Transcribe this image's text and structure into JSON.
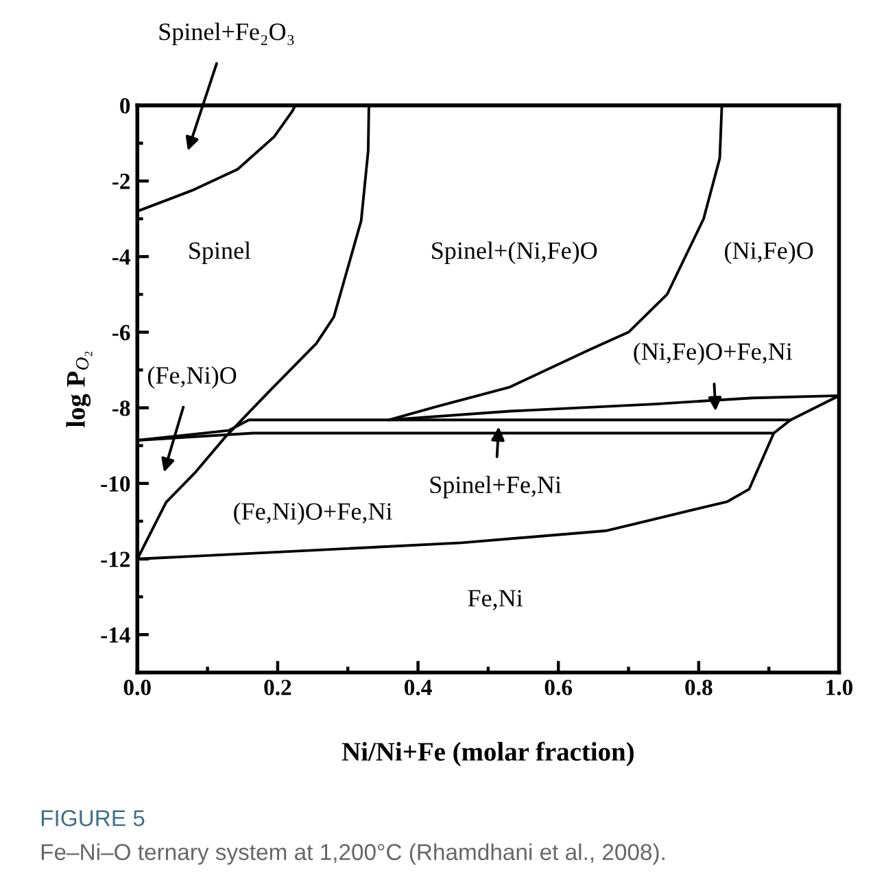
{
  "chart_data": {
    "type": "line",
    "title": "FIGURE 5",
    "xlabel": "Ni/Ni+Fe (molar fraction)",
    "ylabel": "log P$_{O₂}$",
    "xlim": [
      0,
      1
    ],
    "ylim": [
      -15,
      0
    ],
    "xticks": [
      {
        "value": 0,
        "label": "0.0"
      },
      {
        "value": 0.2,
        "label": "0.2"
      },
      {
        "value": 0.4,
        "label": "0.4"
      },
      {
        "value": 0.6,
        "label": "0.6"
      },
      {
        "value": 0.8,
        "label": "0.8"
      },
      {
        "value": 1,
        "label": "1.0"
      }
    ],
    "yticks": [
      0,
      -2,
      -4,
      -6,
      -8,
      -10,
      -12,
      -14
    ],
    "grid": false,
    "legend": false,
    "marker": "none",
    "line_style": "solid",
    "series": [
      {
        "color": "#000000",
        "x": [
          0,
          0.078,
          0.143,
          0.195,
          0.221,
          0.225
        ],
        "values": [
          -2.8,
          -2.25,
          -1.69,
          -0.83,
          -0.15,
          0
        ]
      },
      {
        "color": "#000000",
        "x": [
          0,
          0.041,
          0.083,
          0.124,
          0.186,
          0.255,
          0.28,
          0.319,
          0.329,
          0.33
        ],
        "values": [
          -12,
          -10.5,
          -9.7,
          -8.8,
          -7.6,
          -6.3,
          -5.6,
          -3.05,
          -1.2,
          0
        ]
      },
      {
        "color": "#000000",
        "x": [
          0.833,
          0.83,
          0.807,
          0.755,
          0.7,
          0.64,
          0.531,
          0.428,
          0.359
        ],
        "values": [
          0,
          -1.4,
          -3.0,
          -5.0,
          -6.0,
          -6.5,
          -7.45,
          -7.96,
          -8.32
        ]
      },
      {
        "color": "#000000",
        "x": [
          0.359,
          0.531,
          0.738,
          0.876,
          1.0
        ],
        "values": [
          -8.32,
          -8.09,
          -7.9,
          -7.74,
          -7.68
        ]
      },
      {
        "color": "#000000",
        "x": [
          0,
          0.13,
          0.159,
          0.931,
          1.0
        ],
        "values": [
          -8.86,
          -8.6,
          -8.32,
          -8.32,
          -7.68
        ]
      },
      {
        "color": "#000000",
        "x": [
          0,
          0.165,
          0.907,
          0.872,
          0.841,
          0.669,
          0.462,
          0.186,
          0
        ],
        "values": [
          -8.86,
          -8.67,
          -8.67,
          -10.15,
          -10.48,
          -11.25,
          -11.57,
          -11.83,
          -12
        ]
      },
      {
        "color": "#000000",
        "x": [
          0.907,
          0.931
        ],
        "values": [
          -8.67,
          -8.32
        ]
      }
    ],
    "annotations": [
      "Spinel+Fe₂O₃",
      "Spinel",
      "Spinel+(Ni,Fe)O",
      "(Ni,Fe)O",
      "(Ni,Fe)O+Fe,Ni",
      "(Fe,Ni)O",
      {
        "text": "Spinel+Fe,Ni",
        "x": 0.515,
        "y": -8.5
      },
      "(Fe,Ni)O+Fe,Ni",
      "Fe,Ni",
      "Fe–Ni–O ternary system at 1,200°C (Rhamdhani et al., 2008)."
    ]
  }
}
